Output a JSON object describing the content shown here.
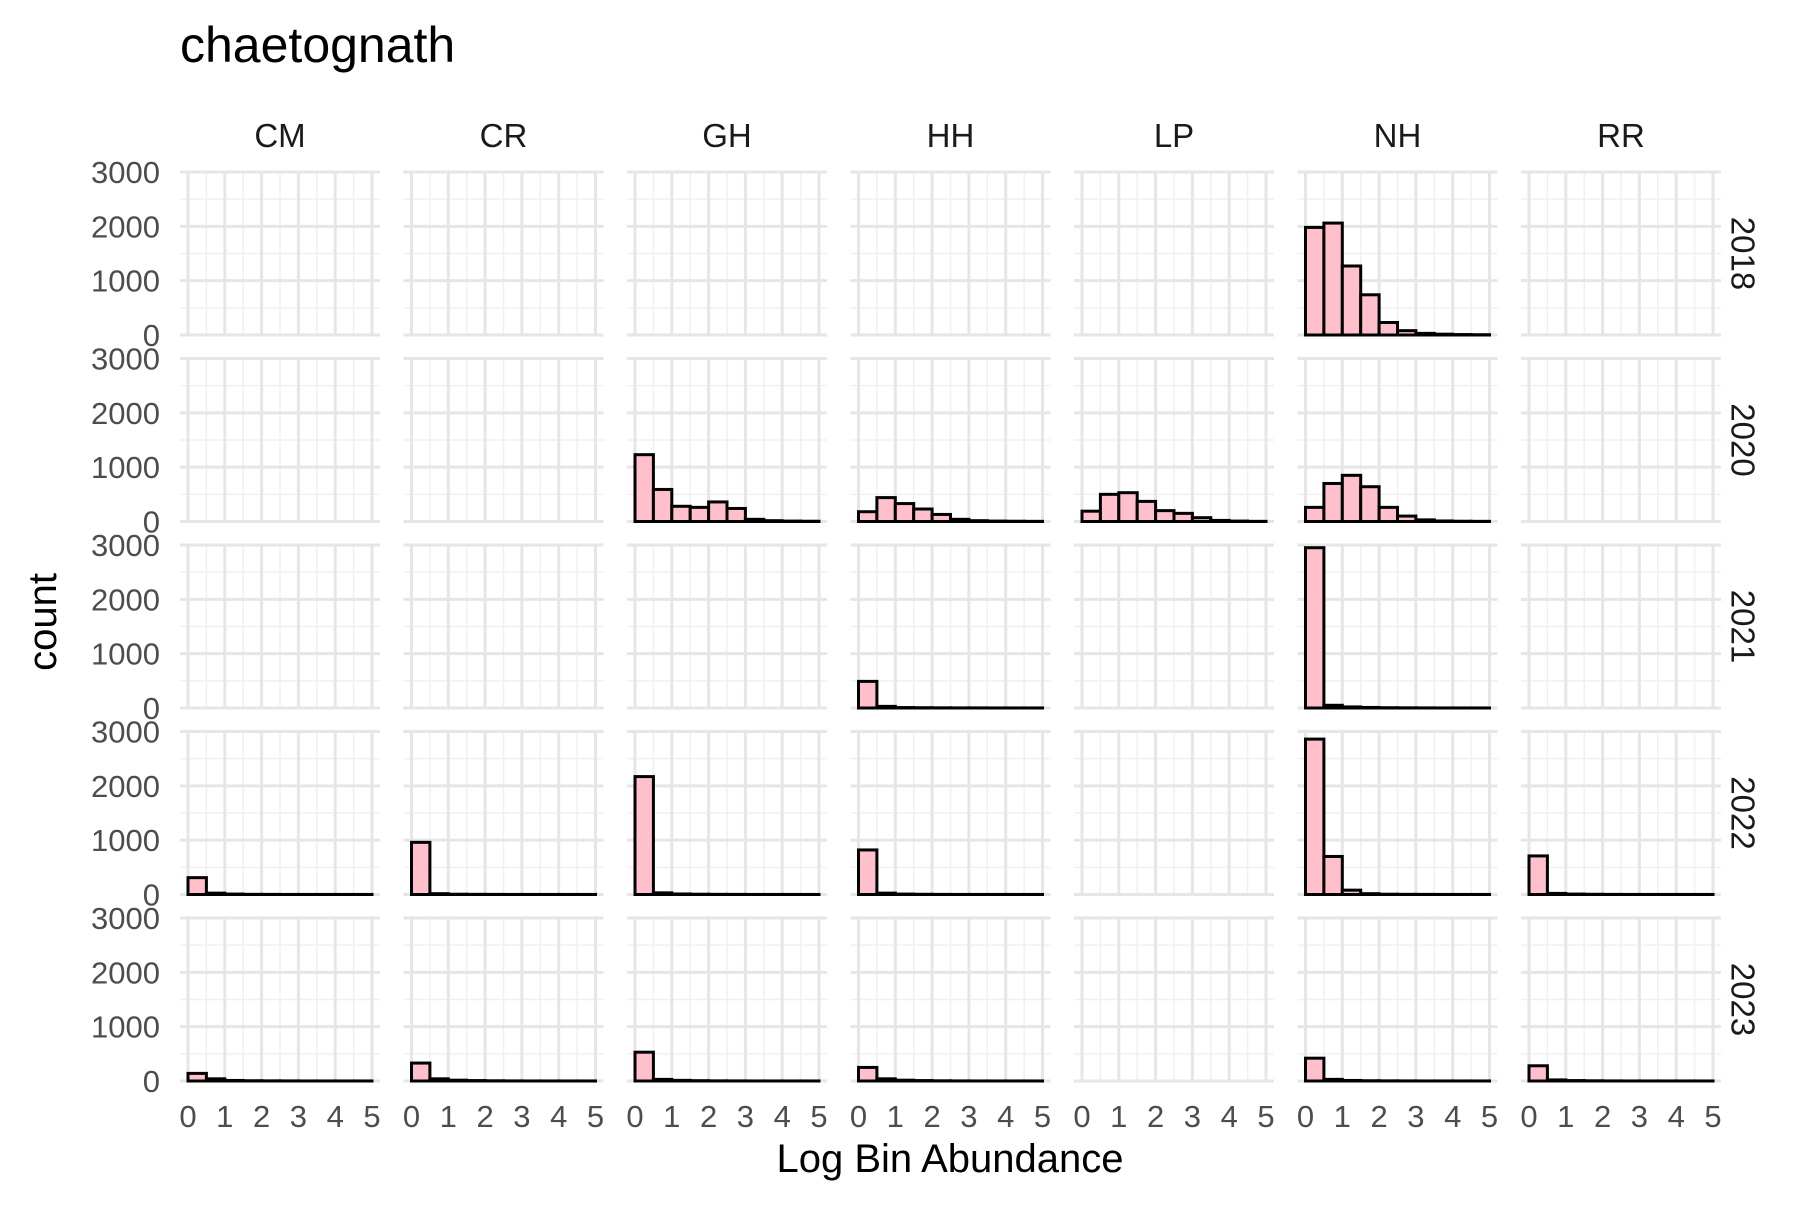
{
  "chart_data": {
    "type": "bar",
    "subtype": "faceted-histogram",
    "title": "chaetognath",
    "xlabel": "Log Bin Abundance",
    "ylabel": "count",
    "xlim": [
      0,
      5
    ],
    "ylim": [
      0,
      3000
    ],
    "x_ticks": [
      "0",
      "1",
      "2",
      "3",
      "4",
      "5"
    ],
    "y_ticks": [
      "0",
      "1000",
      "2000",
      "3000"
    ],
    "bin_width": 0.5,
    "bin_starts": [
      0,
      0.5,
      1.0,
      1.5,
      2.0,
      2.5,
      3.0,
      3.5,
      4.0,
      4.5
    ],
    "facet_cols": [
      "CM",
      "CR",
      "GH",
      "HH",
      "LP",
      "NH",
      "RR"
    ],
    "facet_rows": [
      "2018",
      "2020",
      "2021",
      "2022",
      "2023"
    ],
    "fill_color": "#FFC0CB",
    "outline_color": "#000000",
    "grid": true,
    "panels": {
      "2018": {
        "NH": [
          1980,
          2060,
          1270,
          740,
          230,
          80,
          30,
          15,
          8,
          5
        ]
      },
      "2020": {
        "GH": [
          1230,
          590,
          280,
          260,
          360,
          240,
          40,
          15,
          8,
          5
        ],
        "HH": [
          180,
          440,
          330,
          230,
          130,
          40,
          15,
          8,
          5,
          3
        ],
        "LP": [
          190,
          500,
          530,
          370,
          200,
          150,
          70,
          20,
          8,
          3
        ],
        "NH": [
          260,
          700,
          850,
          640,
          260,
          100,
          30,
          10,
          5,
          3
        ]
      },
      "2021": {
        "HH": [
          490,
          30,
          8,
          5,
          3,
          2,
          2,
          1,
          1,
          1
        ],
        "NH": [
          2950,
          50,
          20,
          10,
          5,
          3,
          2,
          1,
          1,
          1
        ]
      },
      "2022": {
        "CM": [
          310,
          25,
          8,
          3,
          2,
          1,
          1,
          1,
          1,
          1
        ],
        "CR": [
          960,
          15,
          5,
          3,
          2,
          1,
          1,
          1,
          1,
          1
        ],
        "GH": [
          2170,
          30,
          10,
          5,
          3,
          2,
          1,
          1,
          1,
          1
        ],
        "HH": [
          820,
          25,
          8,
          4,
          2,
          1,
          1,
          1,
          1,
          1
        ],
        "NH": [
          2860,
          700,
          80,
          15,
          5,
          3,
          2,
          1,
          1,
          1
        ],
        "RR": [
          710,
          20,
          8,
          4,
          2,
          1,
          1,
          1,
          1,
          1
        ]
      },
      "2023": {
        "CM": [
          140,
          40,
          10,
          5,
          3,
          2,
          1,
          1,
          1,
          1
        ],
        "CR": [
          330,
          40,
          15,
          8,
          4,
          2,
          1,
          1,
          1,
          1
        ],
        "GH": [
          530,
          30,
          12,
          6,
          3,
          2,
          1,
          1,
          1,
          1
        ],
        "HH": [
          250,
          40,
          15,
          8,
          4,
          2,
          1,
          1,
          1,
          1
        ],
        "NH": [
          420,
          30,
          10,
          5,
          3,
          2,
          1,
          1,
          1,
          1
        ],
        "RR": [
          280,
          20,
          8,
          4,
          2,
          1,
          1,
          1,
          1,
          1
        ]
      }
    }
  }
}
